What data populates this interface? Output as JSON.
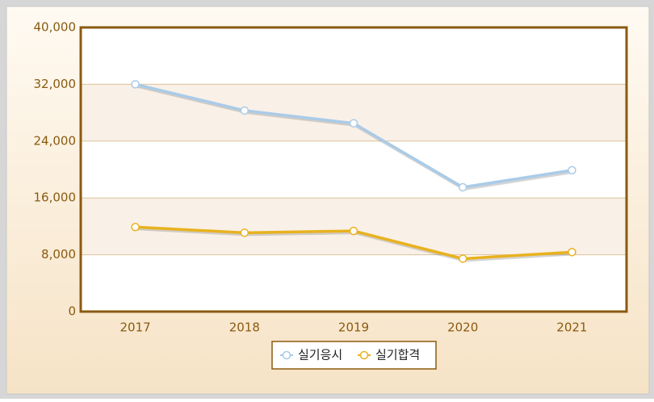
{
  "chart_data": {
    "type": "line",
    "categories": [
      "2017",
      "2018",
      "2019",
      "2020",
      "2021"
    ],
    "series": [
      {
        "name": "실기응시",
        "color": "#a9cbe8",
        "values": [
          32000,
          28300,
          26500,
          17500,
          19900
        ]
      },
      {
        "name": "실기합격",
        "color": "#e8b21f",
        "values": [
          11900,
          11100,
          11350,
          7450,
          8370
        ]
      }
    ],
    "ylim": [
      0,
      40000
    ],
    "yticks": [
      0,
      {
        "value": 8000,
        "label": "8,000"
      },
      {
        "value": 16000,
        "label": "16,000"
      },
      {
        "value": 24000,
        "label": "24,000"
      },
      {
        "value": 32000,
        "label": "32,000"
      },
      {
        "value": 40000,
        "label": "40,000"
      }
    ],
    "grid": true,
    "legend": "bottom"
  }
}
